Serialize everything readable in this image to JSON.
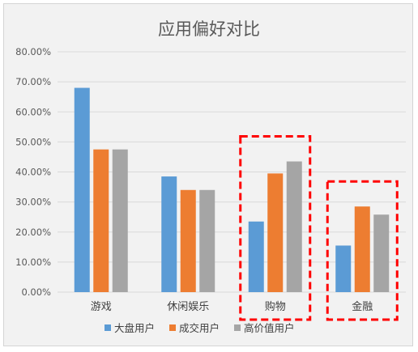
{
  "chart_data": {
    "type": "bar",
    "title": "应用偏好对比",
    "xlabel": "",
    "ylabel": "",
    "categories": [
      "游戏",
      "休闲娱乐",
      "购物",
      "金融"
    ],
    "series": [
      {
        "name": "大盘用户",
        "values": [
          68.0,
          38.5,
          23.5,
          15.5
        ]
      },
      {
        "name": "成交用户",
        "values": [
          47.5,
          34.0,
          39.5,
          28.5
        ]
      },
      {
        "name": "高价值用户",
        "values": [
          47.5,
          34.0,
          43.5,
          25.8
        ]
      }
    ],
    "y_tick_labels": [
      "0.00%",
      "10.00%",
      "20.00%",
      "30.00%",
      "40.00%",
      "50.00%",
      "60.00%",
      "70.00%",
      "80.00%"
    ],
    "ylim": [
      0,
      80
    ],
    "grid": true,
    "legend_position": "bottom",
    "highlight_categories": [
      "购物",
      "金融"
    ],
    "colors": {
      "series": [
        "#5b9bd5",
        "#ed7d31",
        "#a5a5a5"
      ],
      "highlight": "#ff0000",
      "grid": "#d9d9d9",
      "background": "#f2f2f2"
    }
  }
}
